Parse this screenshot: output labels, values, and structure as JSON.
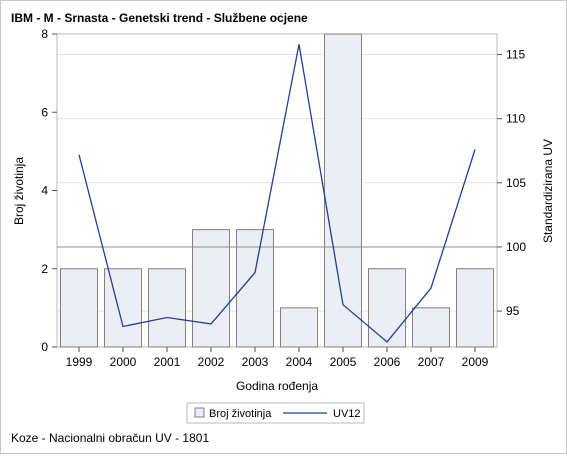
{
  "chart_data": {
    "type": "bar+line",
    "title": "IBM - M - Srnasta - Genetski trend - Službene ocjene",
    "footnote": "Koze - Nacionalni obračun UV - 1801",
    "xlabel": "Godina rođenja",
    "ylabel_left": "Broj životinja",
    "ylabel_right": "Standardizirana UV",
    "categories": [
      "1999",
      "2000",
      "2001",
      "2002",
      "2003",
      "2004",
      "2005",
      "2006",
      "2007",
      "2009"
    ],
    "series": [
      {
        "name": "Broj životinja",
        "type": "bar",
        "axis": "left",
        "values": [
          2,
          2,
          2,
          3,
          3,
          1,
          8,
          2,
          1,
          2
        ],
        "color": "#eceef3",
        "stroke": "#7f7f7f"
      },
      {
        "name": "UV12",
        "type": "line",
        "axis": "right",
        "values": [
          107.2,
          93.8,
          94.5,
          94.0,
          98.0,
          115.8,
          95.5,
          92.6,
          96.8,
          107.6
        ],
        "color": "#1f3f99"
      }
    ],
    "y_left": {
      "min": 0,
      "max": 8,
      "ticks": [
        0,
        2,
        4,
        6,
        8
      ]
    },
    "y_right": {
      "min": 92.2,
      "max": 116.6,
      "ticks": [
        95,
        100,
        105,
        110,
        115
      ]
    },
    "reference_line": {
      "axis": "right",
      "value": 100
    },
    "grid": true,
    "legend": "bottom-center"
  }
}
